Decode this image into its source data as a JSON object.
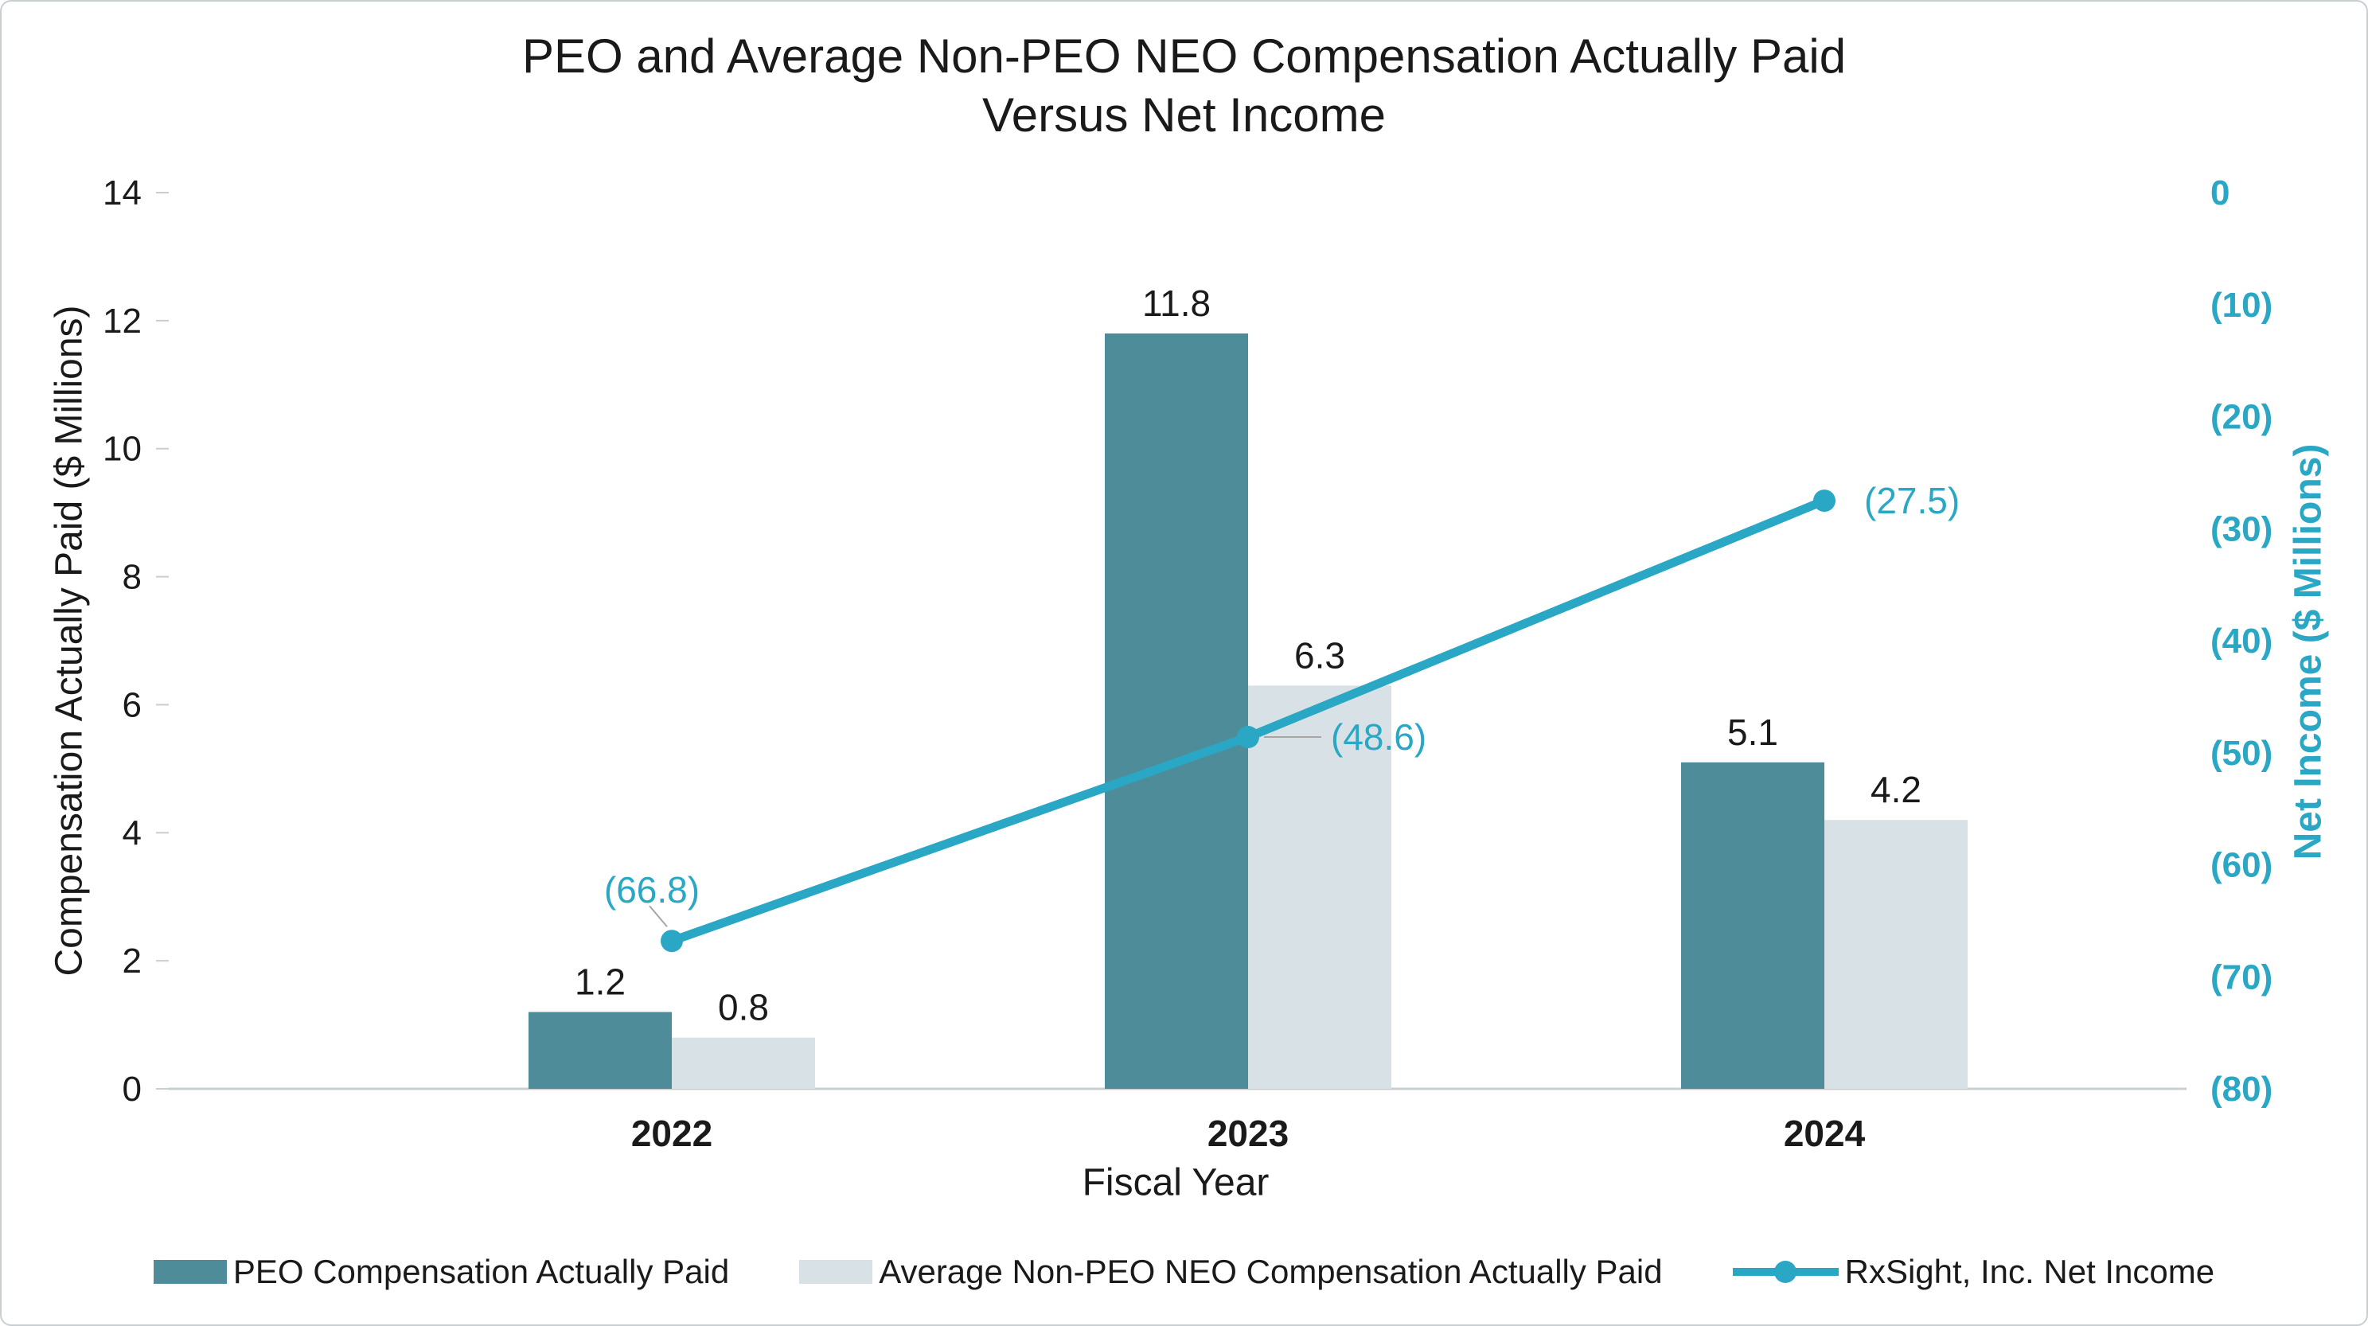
{
  "title": {
    "line1": "PEO and Average Non-PEO NEO Compensation Actually Paid",
    "line2": "Versus Net Income"
  },
  "chart_data": {
    "type": "combo-bar-line",
    "categories": [
      "2022",
      "2023",
      "2024"
    ],
    "bar_series": [
      {
        "name": "PEO Compensation Actually Paid",
        "values": [
          1.2,
          11.8,
          5.1
        ],
        "labels": [
          "1.2",
          "11.8",
          "5.1"
        ],
        "color": "#4E8C99"
      },
      {
        "name": "Average Non-PEO NEO Compensation Actually Paid",
        "values": [
          0.8,
          6.3,
          4.2
        ],
        "labels": [
          "0.8",
          "6.3",
          "4.2"
        ],
        "color": "#D8E1E5"
      }
    ],
    "line_series": {
      "name": "RxSight, Inc. Net Income",
      "values": [
        -66.8,
        -48.6,
        -27.5
      ],
      "labels": [
        "(66.8)",
        "(48.6)",
        "(27.5)"
      ],
      "color": "#29A7C4"
    },
    "left_axis": {
      "title": "Compensation Actually Paid ($ Millions)",
      "min": 0,
      "max": 14,
      "step": 2,
      "ticks": [
        "0",
        "2",
        "4",
        "6",
        "8",
        "10",
        "12",
        "14"
      ]
    },
    "right_axis": {
      "title": "Net Income ($ Millions)",
      "min": -80,
      "max": 0,
      "step": 10,
      "ticks": [
        "0",
        "(10)",
        "(20)",
        "(30)",
        "(40)",
        "(50)",
        "(60)",
        "(70)",
        "(80)"
      ],
      "color": "#29A7C4"
    },
    "x_axis": {
      "title": "Fiscal Year"
    },
    "legend_position": "bottom",
    "grid": false
  }
}
